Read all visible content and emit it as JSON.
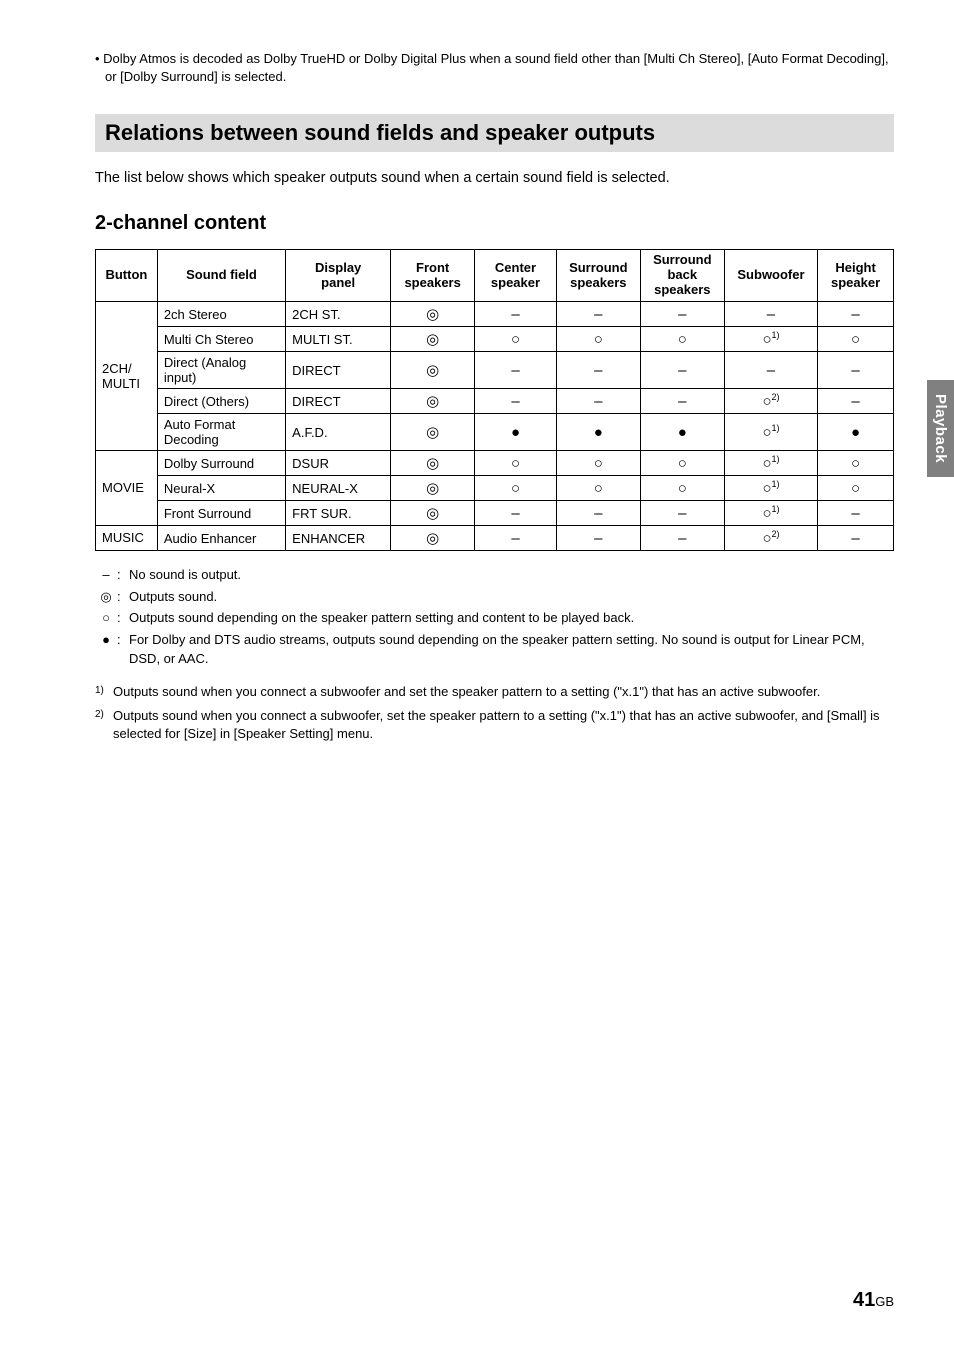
{
  "topNote": "• Dolby Atmos is decoded as Dolby TrueHD or Dolby Digital Plus when a sound field other than [Multi Ch Stereo], [Auto Format Decoding], or [Dolby Surround] is selected.",
  "sectionTitle": "Relations between sound fields and speaker outputs",
  "introText": "The list below shows which speaker outputs sound when a certain sound field is selected.",
  "subsectionTitle": "2-channel content",
  "sideTab": "Playback",
  "pageNumber": "41",
  "pageSuffix": "GB",
  "table": {
    "headers": [
      "Button",
      "Sound field",
      "Display panel",
      "Front speakers",
      "Center speaker",
      "Surround speakers",
      "Surround back speakers",
      "Subwoofer",
      "Height speaker"
    ],
    "colWidths": [
      "53px",
      "110px",
      "90px",
      "72px",
      "70px",
      "72px",
      "72px",
      "80px",
      "65px"
    ],
    "groups": [
      {
        "button": "2CH/\nMULTI",
        "rows": [
          {
            "sf": "2ch Stereo",
            "dp": "2CH ST.",
            "cells": [
              "◎",
              "–",
              "–",
              "–",
              "–",
              "–"
            ]
          },
          {
            "sf": "Multi Ch Stereo",
            "dp": "MULTI ST.",
            "cells": [
              "◎",
              "○",
              "○",
              "○",
              {
                "t": "○",
                "s": "1)"
              },
              "○"
            ]
          },
          {
            "sf": "Direct (Analog input)",
            "dp": "DIRECT",
            "cells": [
              "◎",
              "–",
              "–",
              "–",
              "–",
              "–"
            ]
          },
          {
            "sf": "Direct (Others)",
            "dp": "DIRECT",
            "cells": [
              "◎",
              "–",
              "–",
              "–",
              {
                "t": "○",
                "s": "2)"
              },
              "–"
            ]
          },
          {
            "sf": "Auto Format Decoding",
            "dp": "A.F.D.",
            "cells": [
              "◎",
              "●",
              "●",
              "●",
              {
                "t": "○",
                "s": "1)"
              },
              "●"
            ]
          }
        ]
      },
      {
        "button": "MOVIE",
        "rows": [
          {
            "sf": "Dolby Surround",
            "dp": "DSUR",
            "cells": [
              "◎",
              "○",
              "○",
              "○",
              {
                "t": "○",
                "s": "1)"
              },
              "○"
            ]
          },
          {
            "sf": "Neural-X",
            "dp": "NEURAL-X",
            "cells": [
              "◎",
              "○",
              "○",
              "○",
              {
                "t": "○",
                "s": "1)"
              },
              "○"
            ]
          },
          {
            "sf": "Front Surround",
            "dp": "FRT SUR.",
            "cells": [
              "◎",
              "–",
              "–",
              "–",
              {
                "t": "○",
                "s": "1)"
              },
              "–"
            ]
          }
        ]
      },
      {
        "button": "MUSIC",
        "rows": [
          {
            "sf": "Audio Enhancer",
            "dp": "ENHANCER",
            "cells": [
              "◎",
              "–",
              "–",
              "–",
              {
                "t": "○",
                "s": "2)"
              },
              "–"
            ]
          }
        ]
      }
    ]
  },
  "legend": [
    {
      "sym": "–",
      "text": "No sound is output."
    },
    {
      "sym": "◎",
      "text": "Outputs sound."
    },
    {
      "sym": "○",
      "text": "Outputs sound depending on the speaker pattern setting and content to be played back."
    },
    {
      "sym": "●",
      "text": "For Dolby and DTS audio streams, outputs sound depending on the speaker pattern setting. No sound is output for Linear PCM, DSD, or AAC."
    }
  ],
  "footnotes": [
    {
      "num": "1)",
      "text": "Outputs sound when you connect a subwoofer and set the speaker pattern to a setting (\"x.1\") that has an active subwoofer."
    },
    {
      "num": "2)",
      "text": "Outputs sound when you connect a subwoofer, set the speaker pattern to a setting (\"x.1\") that has an active subwoofer, and [Small] is selected for [Size] in [Speaker Setting] menu."
    }
  ]
}
